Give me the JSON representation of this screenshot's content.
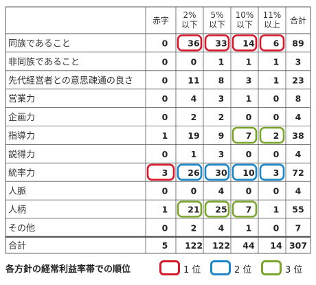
{
  "chart_data": {
    "type": "table",
    "columns": [
      "赤字",
      "2%以下",
      "5%以下",
      "10%以下",
      "11%以上",
      "合計"
    ],
    "column_header_lines": [
      [
        "赤字"
      ],
      [
        "2%",
        "以下"
      ],
      [
        "5%",
        "以下"
      ],
      [
        "10%",
        "以下"
      ],
      [
        "11%",
        "以上"
      ],
      [
        "合計"
      ]
    ],
    "rows": [
      {
        "label": "同族であること",
        "values": [
          0,
          36,
          33,
          14,
          6,
          89
        ],
        "ranks": [
          null,
          1,
          1,
          1,
          1,
          null
        ]
      },
      {
        "label": "非同族であること",
        "values": [
          0,
          0,
          1,
          1,
          1,
          3
        ],
        "ranks": [
          null,
          null,
          null,
          null,
          null,
          null
        ]
      },
      {
        "label": "先代経営者との意思疎通の良さ",
        "values": [
          0,
          11,
          8,
          3,
          1,
          23
        ],
        "ranks": [
          null,
          null,
          null,
          null,
          null,
          null
        ]
      },
      {
        "label": "営業力",
        "values": [
          0,
          4,
          3,
          1,
          0,
          8
        ],
        "ranks": [
          null,
          null,
          null,
          null,
          null,
          null
        ]
      },
      {
        "label": "企画力",
        "values": [
          0,
          2,
          2,
          0,
          0,
          4
        ],
        "ranks": [
          null,
          null,
          null,
          null,
          null,
          null
        ]
      },
      {
        "label": "指導力",
        "values": [
          1,
          19,
          9,
          7,
          2,
          38
        ],
        "ranks": [
          null,
          null,
          null,
          3,
          3,
          null
        ]
      },
      {
        "label": "説得力",
        "values": [
          0,
          1,
          3,
          0,
          0,
          4
        ],
        "ranks": [
          null,
          null,
          null,
          null,
          null,
          null
        ]
      },
      {
        "label": "統率力",
        "values": [
          3,
          26,
          30,
          10,
          3,
          72
        ],
        "ranks": [
          1,
          2,
          2,
          2,
          2,
          null
        ]
      },
      {
        "label": "人脈",
        "values": [
          0,
          0,
          4,
          0,
          0,
          4
        ],
        "ranks": [
          null,
          null,
          null,
          null,
          null,
          null
        ]
      },
      {
        "label": "人柄",
        "values": [
          1,
          21,
          25,
          7,
          1,
          55
        ],
        "ranks": [
          null,
          3,
          3,
          3,
          null,
          null
        ]
      },
      {
        "label": "その他",
        "values": [
          0,
          2,
          4,
          1,
          0,
          7
        ],
        "ranks": [
          null,
          null,
          null,
          null,
          null,
          null
        ]
      }
    ],
    "total_row": {
      "label": "合計",
      "values": [
        5,
        122,
        122,
        44,
        14,
        307
      ]
    },
    "legend": {
      "title": "各方針の経常利益率帯での順位",
      "items": [
        {
          "rank": 1,
          "label": "1 位",
          "color": "#d7182a"
        },
        {
          "rank": 2,
          "label": "2 位",
          "color": "#1b86c8"
        },
        {
          "rank": 3,
          "label": "3 位",
          "color": "#7aa52b"
        }
      ]
    }
  }
}
